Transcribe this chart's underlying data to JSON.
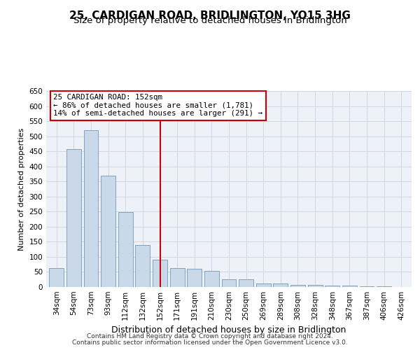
{
  "title": "25, CARDIGAN ROAD, BRIDLINGTON, YO15 3HG",
  "subtitle": "Size of property relative to detached houses in Bridlington",
  "xlabel": "Distribution of detached houses by size in Bridlington",
  "ylabel": "Number of detached properties",
  "categories": [
    "34sqm",
    "54sqm",
    "73sqm",
    "93sqm",
    "112sqm",
    "132sqm",
    "152sqm",
    "171sqm",
    "191sqm",
    "210sqm",
    "230sqm",
    "250sqm",
    "269sqm",
    "289sqm",
    "308sqm",
    "328sqm",
    "348sqm",
    "367sqm",
    "387sqm",
    "406sqm",
    "426sqm"
  ],
  "values": [
    62,
    458,
    520,
    368,
    248,
    140,
    90,
    62,
    60,
    54,
    25,
    25,
    11,
    11,
    6,
    7,
    5,
    5,
    3,
    2,
    1
  ],
  "bar_color": "#c9d9ea",
  "bar_edge_color": "#7098b8",
  "vline_index": 6,
  "vline_color": "#cc0000",
  "annotation_line1": "25 CARDIGAN ROAD: 152sqm",
  "annotation_line2": "← 86% of detached houses are smaller (1,781)",
  "annotation_line3": "14% of semi-detached houses are larger (291) →",
  "annotation_box_color": "#ffffff",
  "annotation_box_edge": "#cc0000",
  "ylim": [
    0,
    650
  ],
  "yticks": [
    0,
    50,
    100,
    150,
    200,
    250,
    300,
    350,
    400,
    450,
    500,
    550,
    600,
    650
  ],
  "grid_color": "#d0d8e8",
  "background_color": "#eef2f8",
  "footer_line1": "Contains HM Land Registry data © Crown copyright and database right 2024.",
  "footer_line2": "Contains public sector information licensed under the Open Government Licence v3.0.",
  "title_fontsize": 11,
  "subtitle_fontsize": 9.5,
  "xlabel_fontsize": 9,
  "ylabel_fontsize": 8,
  "tick_fontsize": 7.5,
  "footer_fontsize": 6.5,
  "annotation_fontsize": 7.8
}
